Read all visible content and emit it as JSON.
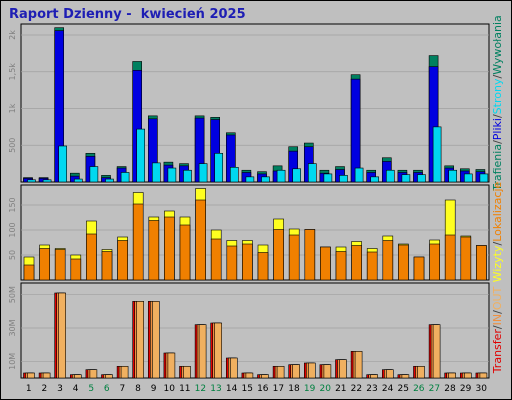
{
  "title": "Raport Dzienny -  kwiecień 2025",
  "colors": {
    "background": "#bfbfbf",
    "plot_background": "#c0c0c0",
    "title": "#1e1eb4",
    "tick": "#808080",
    "weekday": "#000000",
    "weekend": "#008040",
    "hits": "#008060",
    "files": "#0000e0",
    "pages": "#00d8f0",
    "visits": "#ffff20",
    "sites": "#f08000",
    "kbytes": "#e00000",
    "kbytes_in": "#f09040",
    "kbytes_out": "#f0b060"
  },
  "chart_data": [
    {
      "type": "bar",
      "name_hint": "top",
      "x": [
        1,
        2,
        3,
        4,
        5,
        6,
        7,
        8,
        9,
        10,
        11,
        12,
        13,
        14,
        15,
        16,
        17,
        18,
        19,
        20,
        21,
        22,
        23,
        24,
        25,
        26,
        27,
        28,
        29,
        30
      ],
      "weekend_days": [
        5,
        6,
        12,
        13,
        19,
        20,
        26,
        27
      ],
      "y_ticks": [
        "2k",
        "1,5k",
        "1k",
        "500"
      ],
      "y_tick_values": [
        2000,
        1500,
        1000,
        500
      ],
      "ylim": [
        0,
        2150
      ],
      "legend_labels": [
        "Trafienia",
        "/",
        "Pliki",
        "/",
        "Strony",
        "/",
        "Wywołania"
      ],
      "series": [
        {
          "name": "Trafienia",
          "color": "#008060",
          "values": [
            60,
            60,
            2100,
            120,
            390,
            90,
            210,
            1640,
            900,
            270,
            250,
            900,
            880,
            670,
            160,
            140,
            220,
            480,
            530,
            160,
            210,
            1460,
            160,
            330,
            160,
            160,
            1720,
            220,
            180,
            170
          ]
        },
        {
          "name": "Pliki",
          "color": "#0000e0",
          "values": [
            50,
            50,
            2060,
            80,
            350,
            60,
            190,
            1520,
            860,
            230,
            220,
            870,
            850,
            640,
            130,
            110,
            150,
            420,
            480,
            120,
            170,
            1400,
            130,
            280,
            130,
            130,
            1570,
            190,
            150,
            140
          ]
        },
        {
          "name": "Strony",
          "color": "#00d8f0",
          "values": [
            30,
            30,
            490,
            40,
            210,
            40,
            130,
            720,
            260,
            190,
            160,
            250,
            390,
            200,
            70,
            70,
            160,
            180,
            250,
            110,
            90,
            190,
            70,
            160,
            100,
            100,
            750,
            160,
            110,
            110
          ]
        }
      ]
    },
    {
      "type": "bar",
      "name_hint": "middle",
      "x": [
        1,
        2,
        3,
        4,
        5,
        6,
        7,
        8,
        9,
        10,
        11,
        12,
        13,
        14,
        15,
        16,
        17,
        18,
        19,
        20,
        21,
        22,
        23,
        24,
        25,
        26,
        27,
        28,
        29,
        30
      ],
      "y_ticks": [
        "150",
        "100",
        "50"
      ],
      "y_tick_values": [
        150,
        100,
        50
      ],
      "ylim": [
        0,
        190
      ],
      "legend_labels": [
        "Wizyty",
        "/",
        "Lokalizacje"
      ],
      "series": [
        {
          "name": "Wizyty",
          "color": "#ffff20",
          "values": [
            46,
            70,
            63,
            50,
            118,
            61,
            86,
            175,
            126,
            138,
            126,
            183,
            100,
            79,
            79,
            70,
            122,
            102,
            101,
            66,
            66,
            77,
            63,
            88,
            72,
            46,
            80,
            160,
            88,
            69
          ]
        },
        {
          "name": "Lokalizacje",
          "color": "#f08000",
          "values": [
            30,
            63,
            61,
            42,
            92,
            57,
            79,
            152,
            119,
            126,
            110,
            160,
            82,
            68,
            72,
            55,
            101,
            90,
            101,
            66,
            57,
            69,
            56,
            79,
            70,
            46,
            72,
            90,
            86,
            69
          ]
        }
      ]
    },
    {
      "type": "bar",
      "name_hint": "bottom",
      "x": [
        1,
        2,
        3,
        4,
        5,
        6,
        7,
        8,
        9,
        10,
        11,
        12,
        13,
        14,
        15,
        16,
        17,
        18,
        19,
        20,
        21,
        22,
        23,
        24,
        25,
        26,
        27,
        28,
        29,
        30
      ],
      "y_ticks": [
        "50M",
        "30M",
        "10M"
      ],
      "y_tick_values": [
        50,
        30,
        10
      ],
      "ylim": [
        0,
        57
      ],
      "legend_labels": [
        "Transfer",
        "/",
        "IN",
        "/",
        "OUT"
      ],
      "series": [
        {
          "name": "Transfer",
          "color": "#e00000",
          "values": [
            3,
            3,
            51,
            2,
            5,
            2,
            7,
            46,
            46,
            15,
            7,
            32,
            33,
            12,
            3,
            2,
            7,
            8,
            9,
            8,
            11,
            16,
            2,
            5,
            2,
            7,
            32,
            3,
            3,
            3
          ]
        },
        {
          "name": "IN",
          "color": "#f09040",
          "values": [
            3,
            3,
            51,
            2,
            5,
            2,
            7,
            46,
            46,
            15,
            7,
            32,
            33,
            12,
            3,
            2,
            7,
            8,
            9,
            8,
            11,
            16,
            2,
            5,
            2,
            7,
            32,
            3,
            3,
            3
          ]
        },
        {
          "name": "OUT",
          "color": "#f0b060",
          "values": [
            3,
            3,
            51,
            2,
            5,
            2,
            7,
            46,
            46,
            15,
            7,
            32,
            33,
            12,
            3,
            2,
            7,
            8,
            9,
            8,
            11,
            16,
            2,
            5,
            2,
            7,
            32,
            3,
            3,
            3
          ]
        }
      ]
    }
  ]
}
